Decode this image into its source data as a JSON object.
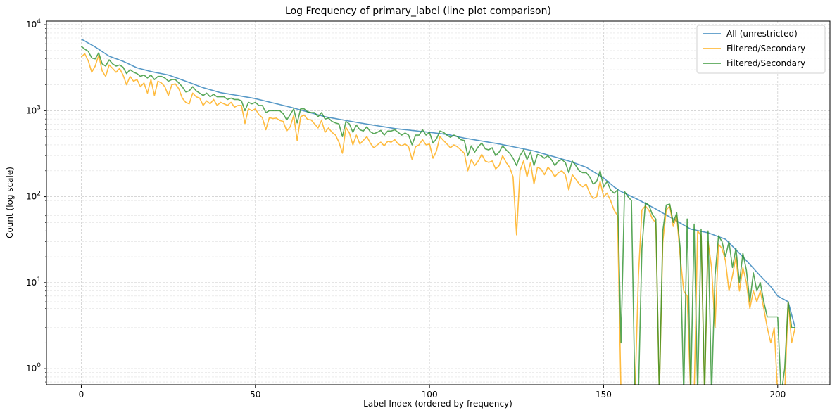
{
  "chart_data": {
    "type": "line",
    "title": "Log Frequency of primary_label (line plot comparison)",
    "xlabel": "Label Index (ordered by frequency)",
    "ylabel": "Count (log scale)",
    "yscale": "log",
    "xlim": [
      -10,
      215
    ],
    "ylim": [
      0.65,
      11000
    ],
    "xticks": [
      0,
      50,
      100,
      150,
      200
    ],
    "xtick_labels": [
      "0",
      "50",
      "100",
      "150",
      "200"
    ],
    "yticks": [
      1,
      10,
      100,
      1000,
      10000
    ],
    "ytick_labels": [
      "10^0",
      "10^1",
      "10^2",
      "10^3",
      "10^4"
    ],
    "grid": true,
    "legend_position": "top-right",
    "series": [
      {
        "name": "All (unrestricted)",
        "color": "#1f77b4",
        "anchors": [
          [
            0,
            6800
          ],
          [
            4,
            5500
          ],
          [
            8,
            4300
          ],
          [
            12,
            3750
          ],
          [
            16,
            3150
          ],
          [
            20,
            2850
          ],
          [
            25,
            2600
          ],
          [
            30,
            2200
          ],
          [
            35,
            1850
          ],
          [
            40,
            1620
          ],
          [
            45,
            1500
          ],
          [
            50,
            1380
          ],
          [
            60,
            1100
          ],
          [
            70,
            850
          ],
          [
            80,
            720
          ],
          [
            90,
            620
          ],
          [
            100,
            560
          ],
          [
            105,
            530
          ],
          [
            110,
            480
          ],
          [
            120,
            410
          ],
          [
            130,
            340
          ],
          [
            140,
            260
          ],
          [
            145,
            220
          ],
          [
            150,
            165
          ],
          [
            153,
            130
          ],
          [
            155,
            115
          ],
          [
            160,
            92
          ],
          [
            165,
            72
          ],
          [
            170,
            55
          ],
          [
            175,
            42
          ],
          [
            180,
            38
          ],
          [
            185,
            32
          ],
          [
            190,
            20
          ],
          [
            195,
            12
          ],
          [
            198,
            9
          ],
          [
            200,
            7
          ],
          [
            203,
            6
          ],
          [
            205,
            3
          ]
        ]
      },
      {
        "name": "Filtered/Secondary",
        "color": "#ffa500",
        "values": [
          4200,
          4600,
          3800,
          2800,
          3300,
          4400,
          2900,
          2500,
          3400,
          3100,
          2800,
          3100,
          2600,
          2000,
          2500,
          2200,
          2300,
          1900,
          2100,
          1600,
          2300,
          1500,
          2200,
          2100,
          1900,
          1500,
          2000,
          2050,
          1800,
          1400,
          1250,
          1200,
          1600,
          1450,
          1400,
          1150,
          1300,
          1200,
          1350,
          1150,
          1250,
          1200,
          1150,
          1250,
          1100,
          1150,
          1150,
          710,
          1050,
          1000,
          1050,
          900,
          830,
          600,
          830,
          810,
          820,
          770,
          750,
          580,
          650,
          880,
          450,
          850,
          890,
          790,
          780,
          700,
          630,
          770,
          560,
          630,
          560,
          520,
          430,
          320,
          640,
          550,
          400,
          520,
          410,
          450,
          500,
          420,
          370,
          400,
          430,
          390,
          440,
          430,
          460,
          410,
          390,
          410,
          380,
          270,
          380,
          400,
          460,
          400,
          410,
          280,
          340,
          500,
          450,
          410,
          370,
          400,
          380,
          350,
          320,
          200,
          270,
          230,
          260,
          310,
          260,
          250,
          260,
          210,
          230,
          300,
          250,
          220,
          170,
          36,
          200,
          260,
          170,
          250,
          140,
          220,
          210,
          180,
          220,
          200,
          170,
          190,
          200,
          180,
          120,
          180,
          160,
          140,
          130,
          140,
          110,
          95,
          100,
          150,
          100,
          110,
          90,
          70,
          60,
          95,
          0,
          0,
          0,
          0,
          0,
          0,
          60,
          0,
          0,
          0,
          0,
          0,
          0,
          0,
          0,
          0,
          0,
          0,
          0,
          0,
          0,
          0,
          0,
          0,
          0,
          0,
          0,
          0,
          0,
          0,
          0,
          0,
          0,
          0,
          0,
          0,
          0,
          0,
          0,
          0,
          0,
          0,
          0,
          0,
          0,
          0,
          0,
          0,
          0,
          0,
          0,
          0,
          0,
          0,
          0,
          0,
          0,
          0,
          0
        ],
        "tail": [
          [
            155,
            0.5
          ],
          [
            156,
            0.5
          ],
          [
            157,
            0.5
          ],
          [
            158,
            0.5
          ],
          [
            159,
            0.5
          ],
          [
            160,
            12
          ],
          [
            161,
            70
          ],
          [
            162,
            78
          ],
          [
            163,
            70
          ],
          [
            164,
            55
          ],
          [
            165,
            50
          ],
          [
            166,
            0.5
          ],
          [
            167,
            30
          ],
          [
            168,
            70
          ],
          [
            169,
            78
          ],
          [
            170,
            45
          ],
          [
            171,
            60
          ],
          [
            172,
            20
          ],
          [
            173,
            8
          ],
          [
            174,
            7
          ],
          [
            175,
            0.5
          ],
          [
            176,
            0.5
          ],
          [
            177,
            40
          ],
          [
            178,
            35
          ],
          [
            179,
            0.5
          ],
          [
            180,
            30
          ],
          [
            181,
            15
          ],
          [
            182,
            3
          ],
          [
            183,
            28
          ],
          [
            184,
            25
          ],
          [
            185,
            18
          ],
          [
            186,
            8
          ],
          [
            187,
            12
          ],
          [
            188,
            20
          ],
          [
            189,
            8
          ],
          [
            190,
            15
          ],
          [
            191,
            10
          ],
          [
            192,
            5
          ],
          [
            193,
            8
          ],
          [
            194,
            6
          ],
          [
            195,
            8
          ],
          [
            196,
            5
          ],
          [
            197,
            3
          ],
          [
            198,
            2
          ],
          [
            199,
            3
          ],
          [
            200,
            0.5
          ],
          [
            201,
            0.5
          ],
          [
            202,
            0.5
          ],
          [
            203,
            6
          ],
          [
            204,
            2
          ],
          [
            205,
            3
          ]
        ]
      },
      {
        "name": "Filtered/Secondary",
        "color": "#228b22",
        "head_values": [
          5600,
          5200,
          4900,
          4100,
          4000,
          4700,
          3500,
          3300,
          3900,
          3500,
          3300,
          3400,
          3200,
          2700,
          3000,
          2800,
          2700,
          2500,
          2600,
          2400,
          2600,
          2300,
          2500,
          2500,
          2400,
          2200,
          2300,
          2300,
          2100,
          1900,
          1650,
          1700,
          1900,
          1700,
          1600,
          1500,
          1600,
          1450,
          1550,
          1450,
          1450,
          1450,
          1350,
          1400,
          1350,
          1350,
          1300,
          1000,
          1250,
          1200,
          1250,
          1150,
          1150,
          950,
          1000,
          1000,
          1000,
          1000,
          920,
          780,
          900,
          1050,
          720,
          1050,
          1050,
          970,
          950,
          950,
          850,
          950,
          800,
          820,
          750,
          720,
          700,
          500,
          750,
          700,
          560,
          680,
          600,
          580,
          650,
          570,
          540,
          560,
          590,
          520,
          580,
          580,
          600,
          560,
          520,
          550,
          520,
          400,
          520,
          520,
          600,
          520,
          560,
          420,
          470,
          580,
          560,
          520,
          490,
          520,
          500,
          460,
          450,
          300,
          390,
          330,
          380,
          420,
          360,
          350,
          370,
          300,
          330,
          390,
          350,
          320,
          280,
          230,
          300,
          350,
          270,
          330,
          230,
          310,
          300,
          280,
          300,
          270,
          230,
          260,
          270,
          250,
          190,
          260,
          230,
          200,
          190,
          190,
          170,
          140,
          150,
          200,
          130,
          150,
          120,
          110,
          100,
          130
        ],
        "tail": [
          [
            154,
            120
          ],
          [
            155,
            2
          ],
          [
            156,
            115
          ],
          [
            157,
            100
          ],
          [
            158,
            90
          ],
          [
            159,
            0.5
          ],
          [
            160,
            0.5
          ],
          [
            161,
            25
          ],
          [
            162,
            85
          ],
          [
            163,
            80
          ],
          [
            164,
            62
          ],
          [
            165,
            55
          ],
          [
            166,
            0.5
          ],
          [
            167,
            40
          ],
          [
            168,
            80
          ],
          [
            169,
            82
          ],
          [
            170,
            50
          ],
          [
            171,
            65
          ],
          [
            172,
            25
          ],
          [
            173,
            0.5
          ],
          [
            174,
            55
          ],
          [
            175,
            0.5
          ],
          [
            176,
            48
          ],
          [
            177,
            0.5
          ],
          [
            178,
            42
          ],
          [
            179,
            0.5
          ],
          [
            180,
            40
          ],
          [
            181,
            0.5
          ],
          [
            182,
            12
          ],
          [
            183,
            35
          ],
          [
            184,
            30
          ],
          [
            185,
            20
          ],
          [
            186,
            30
          ],
          [
            187,
            15
          ],
          [
            188,
            25
          ],
          [
            189,
            10
          ],
          [
            190,
            22
          ],
          [
            191,
            14
          ],
          [
            192,
            6
          ],
          [
            193,
            13
          ],
          [
            194,
            8
          ],
          [
            195,
            10
          ],
          [
            196,
            6
          ],
          [
            197,
            4
          ],
          [
            198,
            4
          ],
          [
            199,
            4
          ],
          [
            200,
            4
          ],
          [
            201,
            0.5
          ],
          [
            202,
            1
          ],
          [
            203,
            6
          ],
          [
            204,
            3
          ],
          [
            205,
            3
          ]
        ]
      }
    ]
  }
}
